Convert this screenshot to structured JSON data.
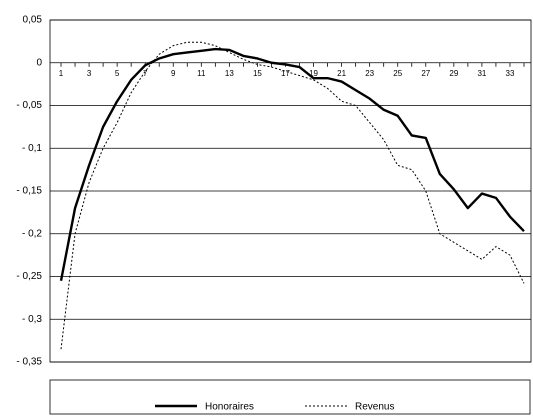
{
  "chart_data": {
    "type": "line",
    "categories": [
      "1",
      null,
      "3",
      null,
      "5",
      null,
      "7",
      null,
      "9",
      null,
      "11",
      null,
      "13",
      null,
      "15",
      null,
      "17",
      null,
      "19",
      null,
      "21",
      null,
      "23",
      null,
      "25",
      null,
      "27",
      null,
      "29",
      null,
      "31",
      null,
      "33",
      null
    ],
    "series": [
      {
        "name": "Honoraires",
        "color": "#000000",
        "style": "solid",
        "values": [
          -0.255,
          -0.17,
          -0.12,
          -0.075,
          -0.045,
          -0.02,
          -0.003,
          0.005,
          0.01,
          0.012,
          0.014,
          0.016,
          0.015,
          0.008,
          0.005,
          0,
          -0.002,
          -0.005,
          -0.018,
          -0.018,
          -0.022,
          -0.032,
          -0.042,
          -0.055,
          -0.062,
          -0.085,
          -0.088,
          -0.13,
          -0.148,
          -0.17,
          -0.153,
          -0.158,
          -0.18,
          -0.197
        ]
      },
      {
        "name": "Revenus",
        "color": "#000000",
        "style": "dotted",
        "values": [
          -0.335,
          -0.2,
          -0.14,
          -0.1,
          -0.07,
          -0.035,
          -0.01,
          0.01,
          0.02,
          0.024,
          0.024,
          0.02,
          0.012,
          0.004,
          -0.002,
          -0.005,
          -0.01,
          -0.015,
          -0.02,
          -0.03,
          -0.045,
          -0.05,
          -0.07,
          -0.09,
          -0.12,
          -0.125,
          -0.15,
          -0.2,
          -0.21,
          -0.22,
          -0.23,
          -0.215,
          -0.225,
          -0.258
        ]
      }
    ],
    "ylim": [
      -0.35,
      0.05
    ],
    "yticks": [
      {
        "value": -0.35,
        "label": "- 0,35"
      },
      {
        "value": -0.3,
        "label": "- 0,3"
      },
      {
        "value": -0.25,
        "label": "- 0,25"
      },
      {
        "value": -0.2,
        "label": "- 0,2"
      },
      {
        "value": -0.15,
        "label": "- 0,15"
      },
      {
        "value": -0.1,
        "label": "- 0,1"
      },
      {
        "value": -0.05,
        "label": "- 0,05"
      },
      0,
      {
        "value": 0.05,
        "label": "0,05"
      }
    ],
    "grid": true,
    "legend": "bottom"
  }
}
